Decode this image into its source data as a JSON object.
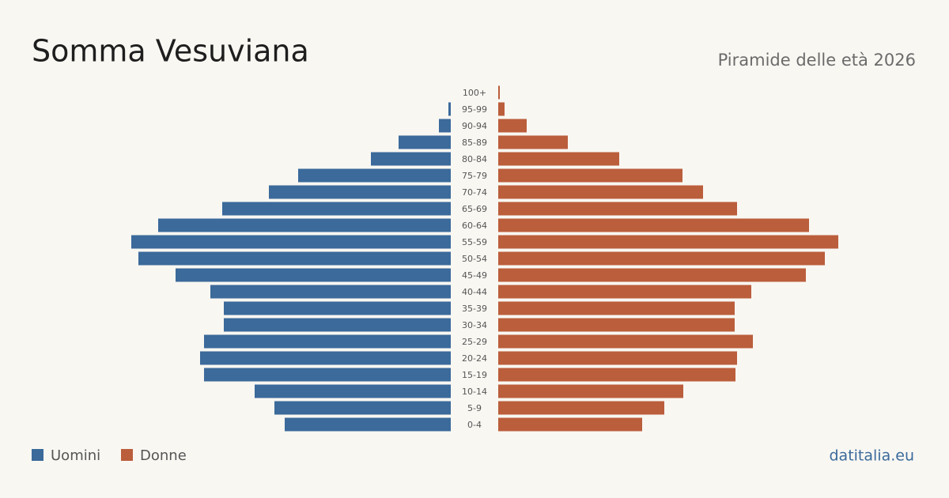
{
  "chart_data": {
    "type": "pyramid",
    "title": "Somma Vesuviana",
    "subtitle": "Piramide delle età 2026",
    "source": "datitalia.eu",
    "categories": [
      "100+",
      "95-99",
      "90-94",
      "85-89",
      "80-84",
      "75-79",
      "70-74",
      "65-69",
      "60-64",
      "55-59",
      "50-54",
      "45-49",
      "40-44",
      "35-39",
      "30-34",
      "25-29",
      "20-24",
      "15-19",
      "10-14",
      "5-9",
      "0-4"
    ],
    "series": [
      {
        "name": "Uomini",
        "color": "#3b6a9b",
        "values": [
          0,
          3,
          15,
          66,
          101,
          193,
          230,
          289,
          370,
          404,
          395,
          348,
          304,
          287,
          287,
          312,
          317,
          312,
          248,
          223,
          210
        ]
      },
      {
        "name": "Donne",
        "color": "#bb5e3c",
        "values": [
          2,
          8,
          36,
          88,
          153,
          233,
          259,
          302,
          393,
          430,
          413,
          389,
          320,
          299,
          299,
          322,
          302,
          300,
          234,
          210,
          182
        ]
      }
    ],
    "xlim": [
      0,
      450
    ]
  }
}
